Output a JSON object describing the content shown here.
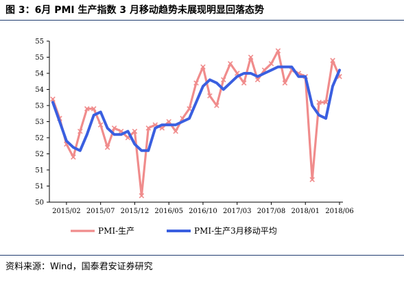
{
  "header": {
    "title": "图 3：6月 PMI 生产指数 3 月移动趋势未展现明显回落态势"
  },
  "footer": {
    "source": "资料来源：Wind，国泰君安证券研究"
  },
  "colors": {
    "pmi": "#f08c8c",
    "ma3": "#3a5fe0",
    "rule": "#1f3b6e"
  },
  "chart_data": {
    "type": "line",
    "x": [
      "2014/12",
      "2015/01",
      "2015/02",
      "2015/03",
      "2015/04",
      "2015/05",
      "2015/06",
      "2015/07",
      "2015/08",
      "2015/09",
      "2015/10",
      "2015/11",
      "2015/12",
      "2016/01",
      "2016/02",
      "2016/03",
      "2016/04",
      "2016/05",
      "2016/06",
      "2016/07",
      "2016/08",
      "2016/09",
      "2016/10",
      "2016/11",
      "2016/12",
      "2017/01",
      "2017/02",
      "2017/03",
      "2017/04",
      "2017/05",
      "2017/06",
      "2017/07",
      "2017/08",
      "2017/09",
      "2017/10",
      "2017/11",
      "2017/12",
      "2018/01",
      "2018/02",
      "2018/03",
      "2018/04",
      "2018/05",
      "2018/06"
    ],
    "tick_labels": [
      "2015/02",
      "2015/07",
      "2015/12",
      "2016/05",
      "2016/10",
      "2017/03",
      "2017/08",
      "2018/01",
      "2018/06"
    ],
    "tick_indices": [
      2,
      7,
      12,
      17,
      22,
      27,
      32,
      37,
      42
    ],
    "y_tick_labels": [
      "50",
      "51",
      "51",
      "52",
      "52",
      "53",
      "53",
      "54",
      "54",
      "55",
      "55"
    ],
    "ylim": [
      50,
      55
    ],
    "series": [
      {
        "name": "PMI-生产",
        "values": [
          53.2,
          52.6,
          51.8,
          51.4,
          52.2,
          52.9,
          52.9,
          52.4,
          51.7,
          52.3,
          52.2,
          52.0,
          52.2,
          50.2,
          52.3,
          52.4,
          52.3,
          52.5,
          52.2,
          52.6,
          52.9,
          53.7,
          54.2,
          53.3,
          53.0,
          53.8,
          54.3,
          54.0,
          53.7,
          54.5,
          53.8,
          54.1,
          54.3,
          54.7,
          53.7,
          54.1,
          54.0,
          53.9,
          50.7,
          53.1,
          53.1,
          54.4,
          53.9
        ]
      },
      {
        "name": "PMI-生产3月移动平均",
        "values": [
          53.1,
          52.5,
          51.9,
          51.7,
          51.6,
          52.1,
          52.7,
          52.8,
          52.3,
          52.1,
          52.1,
          52.2,
          51.8,
          51.6,
          51.6,
          52.3,
          52.4,
          52.4,
          52.4,
          52.5,
          52.6,
          53.1,
          53.6,
          53.8,
          53.7,
          53.5,
          53.7,
          53.9,
          54.0,
          54.0,
          53.9,
          54.0,
          54.1,
          54.2,
          54.2,
          54.2,
          53.9,
          53.9,
          53.0,
          52.7,
          52.6,
          53.6,
          54.1
        ]
      }
    ],
    "legend_position": "bottom",
    "grid": false
  }
}
